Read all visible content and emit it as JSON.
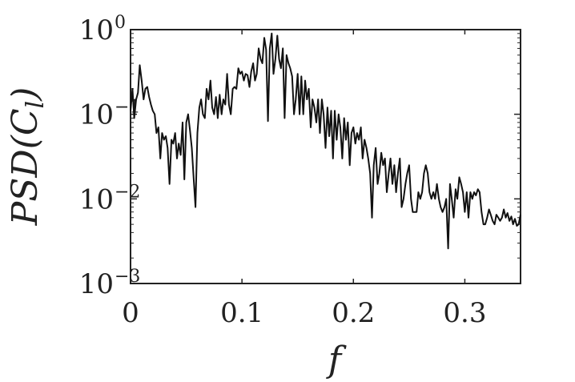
{
  "chart_data": {
    "type": "line",
    "xlabel": "f",
    "ylabel": {
      "main": "PSD(C",
      "sub": "l",
      "close": ")"
    },
    "xlim": [
      0,
      0.35
    ],
    "ylim": [
      0.001,
      1
    ],
    "yscale": "log",
    "grid": false,
    "box": true,
    "line_color": "#111111",
    "x_ticks": [
      {
        "value": 0,
        "label": "0"
      },
      {
        "value": 0.1,
        "label": "0.1"
      },
      {
        "value": 0.2,
        "label": "0.2"
      },
      {
        "value": 0.3,
        "label": "0.3"
      }
    ],
    "y_ticks": [
      {
        "value": 1,
        "base": "10",
        "exp": "0"
      },
      {
        "value": 0.1,
        "base": "10",
        "exp": "−1"
      },
      {
        "value": 0.01,
        "base": "10",
        "exp": "−2"
      },
      {
        "value": 0.001,
        "base": "10",
        "exp": "−3"
      }
    ],
    "series": [
      {
        "points": [
          [
            0.0,
            0.11
          ],
          [
            0.0017,
            0.2
          ],
          [
            0.0033,
            0.09
          ],
          [
            0.005,
            0.15
          ],
          [
            0.0067,
            0.18
          ],
          [
            0.0083,
            0.38
          ],
          [
            0.01,
            0.25
          ],
          [
            0.0117,
            0.15
          ],
          [
            0.0133,
            0.2
          ],
          [
            0.015,
            0.21
          ],
          [
            0.0167,
            0.16
          ],
          [
            0.0183,
            0.13
          ],
          [
            0.02,
            0.11
          ],
          [
            0.0217,
            0.1
          ],
          [
            0.0233,
            0.06
          ],
          [
            0.025,
            0.07
          ],
          [
            0.0267,
            0.03
          ],
          [
            0.0283,
            0.06
          ],
          [
            0.03,
            0.05
          ],
          [
            0.0317,
            0.055
          ],
          [
            0.0333,
            0.04
          ],
          [
            0.035,
            0.015
          ],
          [
            0.0367,
            0.05
          ],
          [
            0.0383,
            0.045
          ],
          [
            0.04,
            0.06
          ],
          [
            0.0417,
            0.03
          ],
          [
            0.0433,
            0.045
          ],
          [
            0.045,
            0.033
          ],
          [
            0.0467,
            0.08
          ],
          [
            0.0483,
            0.017
          ],
          [
            0.05,
            0.08
          ],
          [
            0.0517,
            0.1
          ],
          [
            0.0533,
            0.065
          ],
          [
            0.055,
            0.04
          ],
          [
            0.0567,
            0.017
          ],
          [
            0.0583,
            0.008
          ],
          [
            0.06,
            0.06
          ],
          [
            0.0617,
            0.12
          ],
          [
            0.0633,
            0.15
          ],
          [
            0.065,
            0.1
          ],
          [
            0.0667,
            0.09
          ],
          [
            0.0683,
            0.2
          ],
          [
            0.07,
            0.15
          ],
          [
            0.0717,
            0.25
          ],
          [
            0.0733,
            0.12
          ],
          [
            0.075,
            0.1
          ],
          [
            0.0767,
            0.16
          ],
          [
            0.0783,
            0.09
          ],
          [
            0.08,
            0.17
          ],
          [
            0.0817,
            0.1
          ],
          [
            0.0833,
            0.15
          ],
          [
            0.085,
            0.13
          ],
          [
            0.0867,
            0.3
          ],
          [
            0.0883,
            0.13
          ],
          [
            0.09,
            0.1
          ],
          [
            0.0917,
            0.2
          ],
          [
            0.0933,
            0.21
          ],
          [
            0.095,
            0.2
          ],
          [
            0.0967,
            0.35
          ],
          [
            0.0983,
            0.3
          ],
          [
            0.1,
            0.32
          ],
          [
            0.1017,
            0.25
          ],
          [
            0.1033,
            0.3
          ],
          [
            0.105,
            0.29
          ],
          [
            0.1067,
            0.21
          ],
          [
            0.1083,
            0.32
          ],
          [
            0.11,
            0.4
          ],
          [
            0.1117,
            0.25
          ],
          [
            0.1133,
            0.3
          ],
          [
            0.115,
            0.6
          ],
          [
            0.1167,
            0.45
          ],
          [
            0.1183,
            0.4
          ],
          [
            0.12,
            0.8
          ],
          [
            0.1217,
            0.58
          ],
          [
            0.1233,
            0.083
          ],
          [
            0.125,
            0.6
          ],
          [
            0.1267,
            0.9
          ],
          [
            0.1283,
            0.3
          ],
          [
            0.13,
            0.45
          ],
          [
            0.1317,
            0.85
          ],
          [
            0.1333,
            0.45
          ],
          [
            0.135,
            0.35
          ],
          [
            0.1367,
            0.6
          ],
          [
            0.1383,
            0.09
          ],
          [
            0.14,
            0.5
          ],
          [
            0.1417,
            0.4
          ],
          [
            0.1433,
            0.35
          ],
          [
            0.145,
            0.28
          ],
          [
            0.1467,
            0.1
          ],
          [
            0.1483,
            0.15
          ],
          [
            0.15,
            0.3
          ],
          [
            0.1517,
            0.1
          ],
          [
            0.1533,
            0.28
          ],
          [
            0.155,
            0.1
          ],
          [
            0.1567,
            0.25
          ],
          [
            0.1583,
            0.15
          ],
          [
            0.16,
            0.2
          ],
          [
            0.1617,
            0.07
          ],
          [
            0.1633,
            0.15
          ],
          [
            0.165,
            0.12
          ],
          [
            0.1667,
            0.08
          ],
          [
            0.1683,
            0.15
          ],
          [
            0.17,
            0.06
          ],
          [
            0.1717,
            0.15
          ],
          [
            0.1733,
            0.1
          ],
          [
            0.175,
            0.04
          ],
          [
            0.1767,
            0.12
          ],
          [
            0.1783,
            0.055
          ],
          [
            0.18,
            0.11
          ],
          [
            0.1817,
            0.03
          ],
          [
            0.1833,
            0.11
          ],
          [
            0.185,
            0.05
          ],
          [
            0.1867,
            0.1
          ],
          [
            0.1883,
            0.07
          ],
          [
            0.19,
            0.03
          ],
          [
            0.1917,
            0.09
          ],
          [
            0.1933,
            0.05
          ],
          [
            0.195,
            0.08
          ],
          [
            0.1967,
            0.025
          ],
          [
            0.1983,
            0.06
          ],
          [
            0.2,
            0.07
          ],
          [
            0.2017,
            0.045
          ],
          [
            0.2033,
            0.06
          ],
          [
            0.205,
            0.05
          ],
          [
            0.2067,
            0.07
          ],
          [
            0.2083,
            0.03
          ],
          [
            0.21,
            0.05
          ],
          [
            0.2117,
            0.04
          ],
          [
            0.2133,
            0.03
          ],
          [
            0.215,
            0.02
          ],
          [
            0.2167,
            0.006
          ],
          [
            0.2183,
            0.025
          ],
          [
            0.22,
            0.04
          ],
          [
            0.2217,
            0.015
          ],
          [
            0.2233,
            0.02
          ],
          [
            0.225,
            0.035
          ],
          [
            0.2267,
            0.025
          ],
          [
            0.2283,
            0.03
          ],
          [
            0.23,
            0.012
          ],
          [
            0.2317,
            0.02
          ],
          [
            0.2333,
            0.03
          ],
          [
            0.235,
            0.015
          ],
          [
            0.2367,
            0.025
          ],
          [
            0.2383,
            0.012
          ],
          [
            0.24,
            0.02
          ],
          [
            0.2417,
            0.03
          ],
          [
            0.2433,
            0.008
          ],
          [
            0.245,
            0.01
          ],
          [
            0.2467,
            0.015
          ],
          [
            0.2483,
            0.02
          ],
          [
            0.25,
            0.025
          ],
          [
            0.2517,
            0.01
          ],
          [
            0.2533,
            0.007
          ],
          [
            0.255,
            0.007
          ],
          [
            0.2567,
            0.007
          ],
          [
            0.2583,
            0.012
          ],
          [
            0.26,
            0.01
          ],
          [
            0.2617,
            0.012
          ],
          [
            0.2633,
            0.02
          ],
          [
            0.265,
            0.025
          ],
          [
            0.2667,
            0.02
          ],
          [
            0.2683,
            0.012
          ],
          [
            0.27,
            0.01
          ],
          [
            0.2717,
            0.012
          ],
          [
            0.2733,
            0.01
          ],
          [
            0.275,
            0.015
          ],
          [
            0.2767,
            0.01
          ],
          [
            0.2783,
            0.008
          ],
          [
            0.28,
            0.007
          ],
          [
            0.2817,
            0.008
          ],
          [
            0.2833,
            0.01
          ],
          [
            0.285,
            0.0026
          ],
          [
            0.2867,
            0.015
          ],
          [
            0.2883,
            0.01
          ],
          [
            0.29,
            0.006
          ],
          [
            0.2917,
            0.013
          ],
          [
            0.2933,
            0.01
          ],
          [
            0.295,
            0.018
          ],
          [
            0.2967,
            0.015
          ],
          [
            0.2983,
            0.012
          ],
          [
            0.3,
            0.007
          ],
          [
            0.3017,
            0.012
          ],
          [
            0.3033,
            0.006
          ],
          [
            0.305,
            0.012
          ],
          [
            0.3067,
            0.01
          ],
          [
            0.3083,
            0.012
          ],
          [
            0.31,
            0.011
          ],
          [
            0.3117,
            0.013
          ],
          [
            0.3133,
            0.012
          ],
          [
            0.315,
            0.007
          ],
          [
            0.3167,
            0.005
          ],
          [
            0.3183,
            0.005
          ],
          [
            0.32,
            0.006
          ],
          [
            0.3217,
            0.0075
          ],
          [
            0.3233,
            0.0065
          ],
          [
            0.325,
            0.0055
          ],
          [
            0.3267,
            0.005
          ],
          [
            0.3283,
            0.0065
          ],
          [
            0.33,
            0.006
          ],
          [
            0.3317,
            0.0055
          ],
          [
            0.3333,
            0.006
          ],
          [
            0.335,
            0.0075
          ],
          [
            0.3367,
            0.006
          ],
          [
            0.3383,
            0.0068
          ],
          [
            0.34,
            0.0055
          ],
          [
            0.3417,
            0.0062
          ],
          [
            0.3433,
            0.005
          ],
          [
            0.345,
            0.0058
          ],
          [
            0.3467,
            0.0048
          ],
          [
            0.3483,
            0.005
          ],
          [
            0.35,
            0.0065
          ]
        ]
      }
    ]
  }
}
